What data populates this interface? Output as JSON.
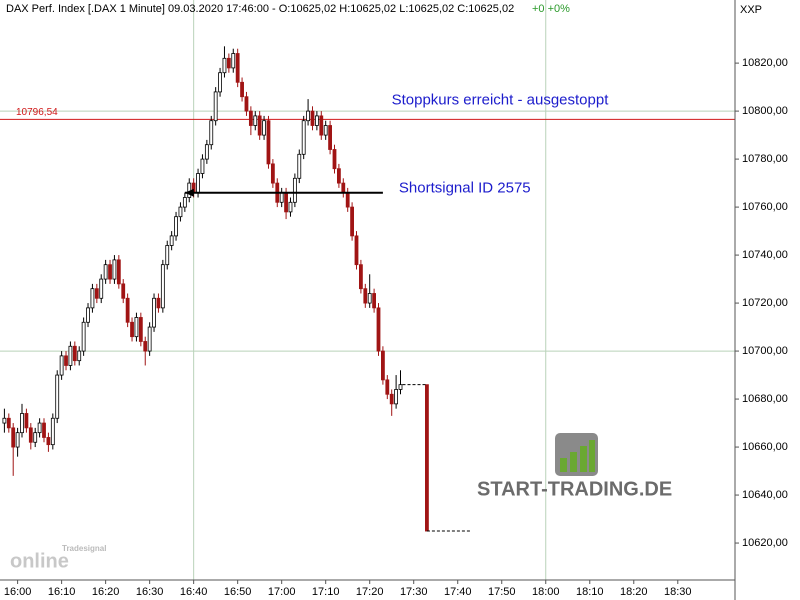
{
  "header": {
    "title": "DAX Perf. Index [.DAX  1 Minute] 09.03.2020 17:46:00 - O:10625,02 H:10625,02 L:10625,02 C:10625,02",
    "change": "+0 +0%",
    "axis_name": "XXP"
  },
  "chart_data": {
    "type": "candlestick",
    "x": [
      "15:57",
      "15:58",
      "15:59",
      "16:00",
      "16:01",
      "16:02",
      "16:03",
      "16:04",
      "16:05",
      "16:06",
      "16:07",
      "16:08",
      "16:09",
      "16:10",
      "16:11",
      "16:12",
      "16:13",
      "16:14",
      "16:15",
      "16:16",
      "16:17",
      "16:18",
      "16:19",
      "16:20",
      "16:21",
      "16:22",
      "16:23",
      "16:24",
      "16:25",
      "16:26",
      "16:27",
      "16:28",
      "16:29",
      "16:30",
      "16:31",
      "16:32",
      "16:33",
      "16:34",
      "16:35",
      "16:36",
      "16:37",
      "16:38",
      "16:39",
      "16:40",
      "16:41",
      "16:42",
      "16:43",
      "16:44",
      "16:45",
      "16:46",
      "16:47",
      "16:48",
      "16:49",
      "16:50",
      "16:51",
      "16:52",
      "16:53",
      "16:54",
      "16:55",
      "16:56",
      "16:57",
      "16:58",
      "16:59",
      "17:00",
      "17:01",
      "17:02",
      "17:03",
      "17:04",
      "17:05",
      "17:06",
      "17:07",
      "17:08",
      "17:09",
      "17:10",
      "17:11",
      "17:12",
      "17:13",
      "17:14",
      "17:15",
      "17:16",
      "17:17",
      "17:18",
      "17:19",
      "17:20",
      "17:21",
      "17:22",
      "17:23",
      "17:24",
      "17:25",
      "17:26",
      "17:27",
      "17:33"
    ],
    "open": [
      10670,
      10672,
      10668,
      10660,
      10666,
      10674,
      10668,
      10662,
      10666,
      10670,
      10664,
      10661,
      10672,
      10690,
      10698,
      10694,
      10702,
      10696,
      10700,
      10712,
      10718,
      10726,
      10722,
      10730,
      10736,
      10730,
      10738,
      10728,
      10722,
      10712,
      10706,
      10714,
      10704,
      10700,
      10710,
      10722,
      10718,
      10736,
      10744,
      10748,
      10756,
      10760,
      10764,
      10770,
      10766,
      10774,
      10780,
      10786,
      10796,
      10808,
      10816,
      10822,
      10818,
      10824,
      10812,
      10806,
      10800,
      10794,
      10798,
      10790,
      10796,
      10778,
      10770,
      10762,
      10766,
      10758,
      10762,
      10772,
      10782,
      10796,
      10800,
      10794,
      10798,
      10790,
      10794,
      10784,
      10776,
      10770,
      10766,
      10760,
      10748,
      10736,
      10726,
      10720,
      10724,
      10718,
      10700,
      10688,
      10682,
      10678,
      10684,
      10686
    ],
    "high": [
      10676,
      10674,
      10670,
      10668,
      10678,
      10676,
      10670,
      10668,
      10672,
      10672,
      10666,
      10674,
      10692,
      10700,
      10700,
      10704,
      10704,
      10702,
      10714,
      10720,
      10728,
      10728,
      10732,
      10738,
      10738,
      10740,
      10740,
      10730,
      10724,
      10714,
      10716,
      10716,
      10706,
      10712,
      10724,
      10724,
      10738,
      10746,
      10750,
      10758,
      10762,
      10766,
      10772,
      10772,
      10776,
      10782,
      10788,
      10798,
      10810,
      10818,
      10827,
      10824,
      10826,
      10826,
      10814,
      10808,
      10802,
      10800,
      10800,
      10798,
      10798,
      10780,
      10772,
      10768,
      10768,
      10764,
      10774,
      10784,
      10798,
      10805,
      10802,
      10800,
      10800,
      10796,
      10796,
      10786,
      10778,
      10772,
      10768,
      10762,
      10750,
      10738,
      10728,
      10732,
      10726,
      10720,
      10702,
      10690,
      10684,
      10690,
      10692,
      10686
    ],
    "low": [
      10666,
      10666,
      10648,
      10656,
      10664,
      10666,
      10659,
      10660,
      10664,
      10662,
      10658,
      10659,
      10670,
      10688,
      10692,
      10692,
      10694,
      10694,
      10698,
      10710,
      10716,
      10720,
      10720,
      10728,
      10728,
      10728,
      10726,
      10720,
      10710,
      10704,
      10704,
      10702,
      10694,
      10698,
      10708,
      10716,
      10716,
      10734,
      10742,
      10746,
      10754,
      10758,
      10762,
      10764,
      10764,
      10772,
      10778,
      10784,
      10794,
      10806,
      10814,
      10816,
      10816,
      10810,
      10804,
      10798,
      10790,
      10792,
      10788,
      10788,
      10776,
      10768,
      10760,
      10760,
      10755,
      10756,
      10760,
      10770,
      10780,
      10794,
      10792,
      10792,
      10788,
      10788,
      10782,
      10774,
      10768,
      10764,
      10758,
      10746,
      10734,
      10724,
      10718,
      10718,
      10716,
      10698,
      10686,
      10680,
      10673,
      10676,
      10682,
      10625
    ],
    "close": [
      10672,
      10668,
      10660,
      10666,
      10674,
      10668,
      10662,
      10666,
      10670,
      10664,
      10661,
      10672,
      10690,
      10698,
      10694,
      10702,
      10696,
      10700,
      10712,
      10718,
      10726,
      10722,
      10730,
      10736,
      10730,
      10738,
      10728,
      10722,
      10712,
      10706,
      10714,
      10704,
      10700,
      10710,
      10722,
      10718,
      10736,
      10744,
      10748,
      10756,
      10760,
      10764,
      10770,
      10766,
      10774,
      10780,
      10786,
      10796,
      10808,
      10816,
      10822,
      10818,
      10824,
      10812,
      10806,
      10800,
      10794,
      10798,
      10790,
      10796,
      10778,
      10770,
      10762,
      10766,
      10758,
      10762,
      10772,
      10782,
      10796,
      10800,
      10794,
      10798,
      10790,
      10794,
      10784,
      10776,
      10770,
      10766,
      10760,
      10748,
      10736,
      10726,
      10720,
      10724,
      10718,
      10700,
      10688,
      10682,
      10678,
      10684,
      10686,
      10625
    ],
    "up_color": "#ffffff",
    "down_color": "#a01414",
    "wick_color": "#000000",
    "last_price_until": "17:43",
    "xlim": [
      "15:56",
      "18:43"
    ],
    "xticks": [
      "16:00",
      "16:10",
      "16:20",
      "16:30",
      "16:40",
      "16:50",
      "17:00",
      "17:10",
      "17:20",
      "17:30",
      "17:40",
      "17:50",
      "18:00",
      "18:10",
      "18:20",
      "18:30"
    ],
    "ylim": [
      10604.6,
      10846.3
    ],
    "yticks": [
      {
        "value": 10620,
        "label": "10620,00"
      },
      {
        "value": 10640,
        "label": "10640,00"
      },
      {
        "value": 10660,
        "label": "10660,00"
      },
      {
        "value": 10680,
        "label": "10680,00"
      },
      {
        "value": 10700,
        "label": "10700,00"
      },
      {
        "value": 10720,
        "label": "10720,00"
      },
      {
        "value": 10740,
        "label": "10740,00"
      },
      {
        "value": 10760,
        "label": "10760,00"
      },
      {
        "value": 10780,
        "label": "10780,00"
      },
      {
        "value": 10800,
        "label": "10800,00"
      },
      {
        "value": 10820,
        "label": "10820,00"
      }
    ],
    "grid": {
      "y": [
        10700,
        10800
      ],
      "x": [
        "16:40",
        "18:00"
      ]
    },
    "stop_line": {
      "value": 10796.54,
      "label": "10796,54",
      "color": "#d01818"
    },
    "annotations": [
      {
        "text": "Stoppkurs erreicht - ausgestoppt"
      },
      {
        "text": "Shortsignal ID 2575",
        "value": 10766,
        "x_from": "16:38",
        "x_to": "17:23"
      }
    ]
  },
  "watermark": {
    "brand": "START-TRADING.DE",
    "logo_small": "Tradesignal",
    "logo_big": "online"
  }
}
